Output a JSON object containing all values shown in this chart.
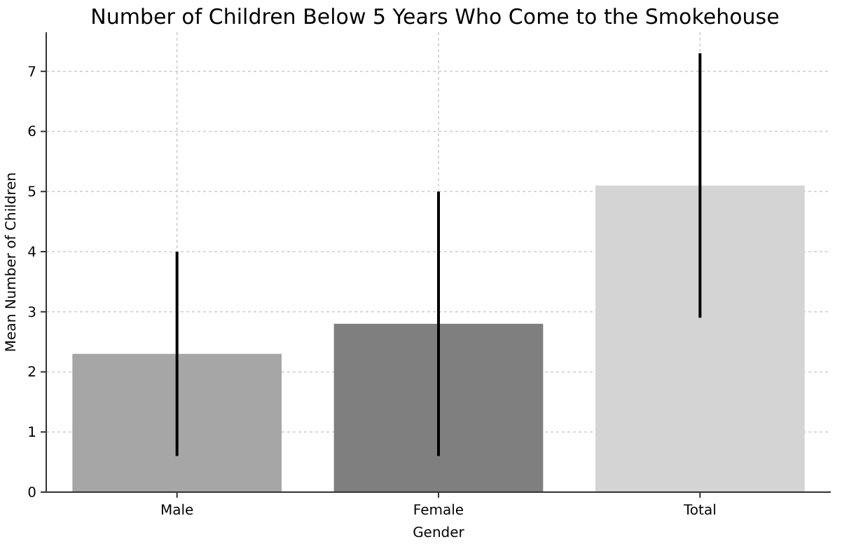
{
  "chart_data": {
    "type": "bar",
    "title": "Number of Children Below 5 Years Who Come to the Smokehouse",
    "xlabel": "Gender",
    "ylabel": "Mean Number of Children",
    "categories": [
      "Male",
      "Female",
      "Total"
    ],
    "values": [
      2.3,
      2.8,
      5.1
    ],
    "errors": [
      1.7,
      2.2,
      2.2
    ],
    "colors": [
      "#a6a6a6",
      "#7f7f7f",
      "#d4d4d4"
    ],
    "ylim": [
      0,
      7.65
    ],
    "yticks": [
      0,
      1,
      2,
      3,
      4,
      5,
      6,
      7
    ],
    "grid": true
  }
}
